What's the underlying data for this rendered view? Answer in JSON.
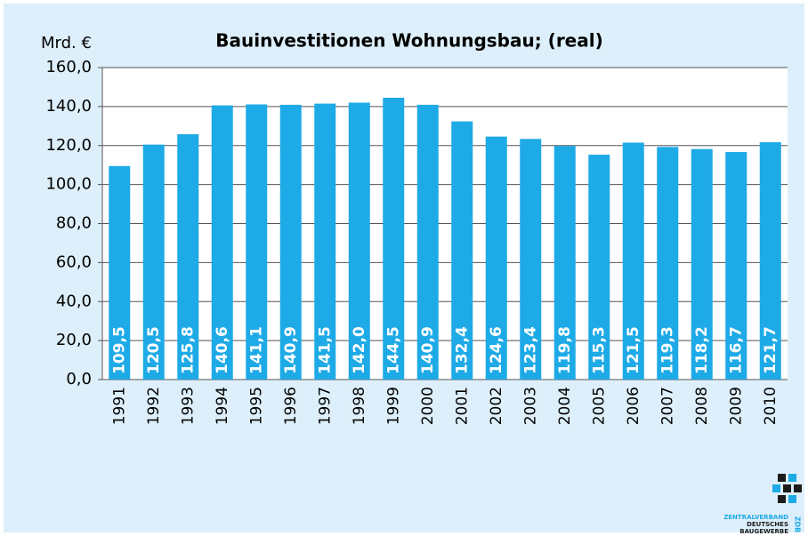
{
  "chart_data": {
    "type": "bar",
    "title": "Bauinvestitionen Wohnungsbau; (real)",
    "y_label": "Mrd. €",
    "categories": [
      "1991",
      "1992",
      "1993",
      "1994",
      "1995",
      "1996",
      "1997",
      "1998",
      "1999",
      "2000",
      "2001",
      "2002",
      "2003",
      "2004",
      "2005",
      "2006",
      "2007",
      "2008",
      "2009",
      "2010"
    ],
    "values": [
      109.5,
      120.5,
      125.8,
      140.6,
      141.1,
      140.9,
      141.5,
      142.0,
      144.5,
      140.9,
      132.4,
      124.6,
      123.4,
      119.8,
      115.3,
      121.5,
      119.3,
      118.2,
      116.7,
      121.7
    ],
    "value_labels": [
      "109,5",
      "120,5",
      "125,8",
      "140,6",
      "141,1",
      "140,9",
      "141,5",
      "142,0",
      "144,5",
      "140,9",
      "132,4",
      "124,6",
      "123,4",
      "119,8",
      "115,3",
      "121,5",
      "119,3",
      "118,2",
      "116,7",
      "121,7"
    ],
    "color": "#1eaae7",
    "ylim": [
      0,
      160
    ],
    "yticks": [
      {
        "value": 0,
        "label": "0,0"
      },
      {
        "value": 20,
        "label": "20,0"
      },
      {
        "value": 40,
        "label": "40,0"
      },
      {
        "value": 60,
        "label": "60,0"
      },
      {
        "value": 80,
        "label": "80,0"
      },
      {
        "value": 100,
        "label": "100,0"
      },
      {
        "value": 120,
        "label": "120,0"
      },
      {
        "value": 140,
        "label": "140,0"
      },
      {
        "value": 160,
        "label": "160,0"
      }
    ],
    "grid": true
  },
  "logo": {
    "lines": [
      "ZENTRALVERBAND",
      "DEUTSCHES",
      "BAUGEWERBE"
    ],
    "abbr": "ZDB"
  }
}
